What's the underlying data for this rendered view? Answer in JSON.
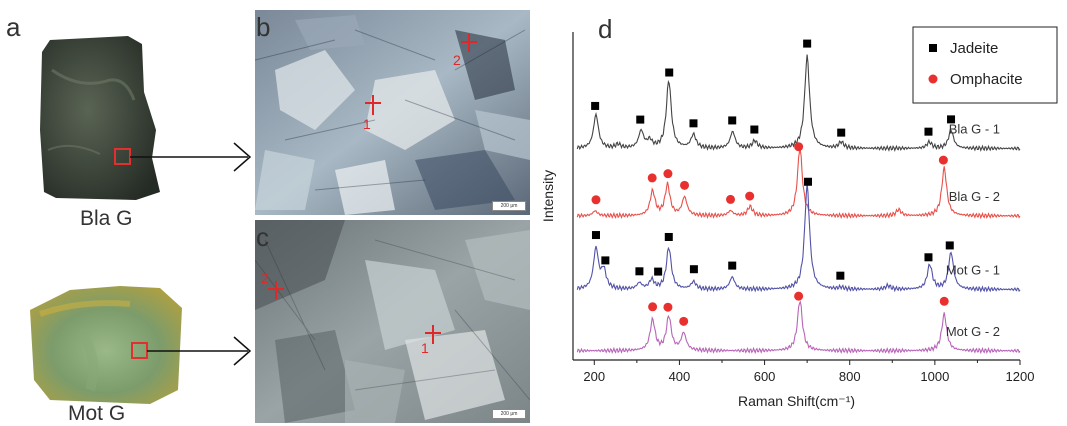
{
  "panels": {
    "a": "a",
    "b": "b",
    "c": "c",
    "d": "d"
  },
  "samples": {
    "top_label": "Bla G",
    "bottom_label": "Mot G"
  },
  "micrographs": {
    "b": {
      "points": [
        "1",
        "2"
      ],
      "scale": "200 μm"
    },
    "c": {
      "points": [
        "1",
        "2"
      ],
      "scale": "200 μm"
    }
  },
  "colors": {
    "jadeite_marker": "#000000",
    "omphacite_marker": "#e8312f",
    "bla_g_1_line": "#444444",
    "bla_g_2_line": "#e8504a",
    "mot_g_1_line": "#5252a8",
    "mot_g_2_line": "#b865b8",
    "bla_g_stone": "#3a4238",
    "mot_g_stone": "#7c9c6c",
    "selection_box": "#e03030"
  },
  "chart_data": {
    "type": "line",
    "xlabel": "Raman Shift(cm⁻¹)",
    "ylabel": "Intensity",
    "xlim": [
      150,
      1200
    ],
    "x_ticks": [
      200,
      400,
      600,
      800,
      1000,
      1200
    ],
    "y_ticks_shown": false,
    "legend": {
      "position": "top-right",
      "entries": [
        {
          "name": "Jadeite",
          "marker": "square"
        },
        {
          "name": "Omphacite",
          "marker": "circle"
        }
      ]
    },
    "series": [
      {
        "name": "Bla G - 1",
        "offset": 3.3,
        "color": "#444444",
        "peaks": [
          [
            204,
            0.55
          ],
          [
            256,
            0.06
          ],
          [
            310,
            0.28
          ],
          [
            330,
            0.12
          ],
          [
            375,
            1.1
          ],
          [
            433,
            0.22
          ],
          [
            525,
            0.27
          ],
          [
            577,
            0.12
          ],
          [
            700,
            1.5
          ],
          [
            780,
            0.1
          ],
          [
            987,
            0.1
          ],
          [
            1038,
            0.3
          ]
        ],
        "markers": {
          "type": "Jadeite",
          "x": [
            202,
            308,
            376,
            433,
            524,
            576,
            700,
            780,
            985,
            1038
          ]
        }
      },
      {
        "name": "Bla G - 2",
        "offset": 2.2,
        "color": "#e8504a",
        "peaks": [
          [
            202,
            0.08
          ],
          [
            337,
            0.4
          ],
          [
            372,
            0.5
          ],
          [
            412,
            0.3
          ],
          [
            520,
            0.08
          ],
          [
            566,
            0.15
          ],
          [
            683,
            1.1
          ],
          [
            915,
            0.1
          ],
          [
            1022,
            0.78
          ]
        ],
        "markers": {
          "type": "Omphacite",
          "x": [
            204,
            336,
            373,
            412,
            520,
            565,
            680,
            1020
          ]
        }
      },
      {
        "name": "Mot G - 1",
        "offset": 1.0,
        "color": "#5252a8",
        "peaks": [
          [
            204,
            0.66
          ],
          [
            222,
            0.3
          ],
          [
            306,
            0.1
          ],
          [
            335,
            0.15
          ],
          [
            375,
            0.68
          ],
          [
            433,
            0.12
          ],
          [
            524,
            0.2
          ],
          [
            700,
            1.7
          ],
          [
            780,
            0.03
          ],
          [
            890,
            0.06
          ],
          [
            988,
            0.4
          ],
          [
            1038,
            0.6
          ]
        ],
        "markers": {
          "type": "Jadeite",
          "x": [
            204,
            226,
            306,
            350,
            375,
            434,
            524,
            702,
            778,
            985,
            1035
          ]
        }
      },
      {
        "name": "Mot G - 2",
        "offset": 0.0,
        "color": "#b865b8",
        "peaks": [
          [
            337,
            0.5
          ],
          [
            375,
            0.55
          ],
          [
            410,
            0.28
          ],
          [
            683,
            0.82
          ],
          [
            1022,
            0.6
          ]
        ],
        "markers": {
          "type": "Omphacite",
          "x": [
            337,
            373,
            410,
            680,
            1022
          ]
        }
      }
    ]
  }
}
